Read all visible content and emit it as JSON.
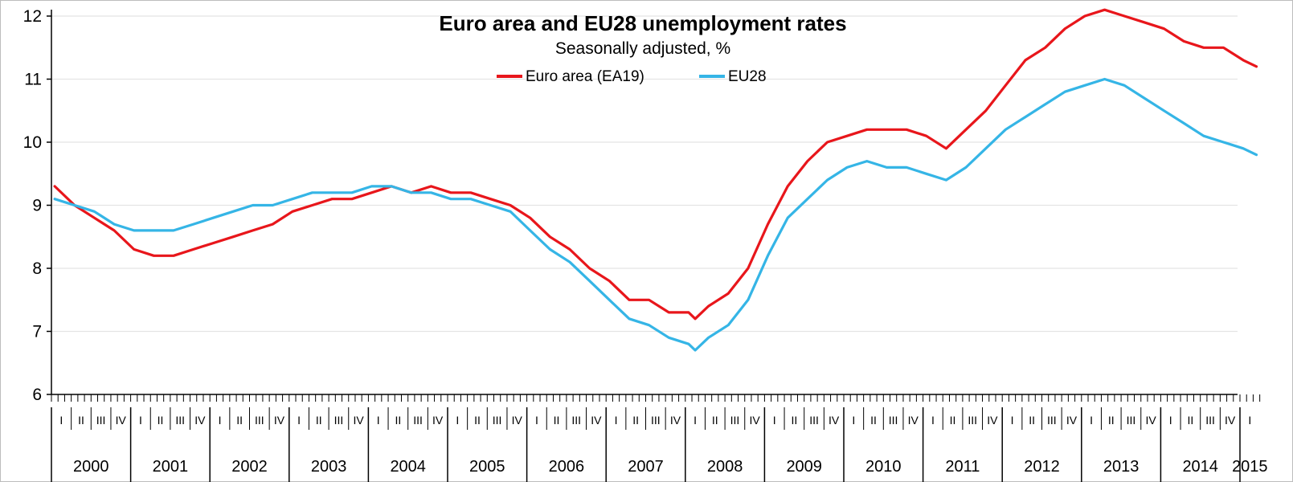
{
  "chart_data": {
    "type": "line",
    "title": "Euro area and EU28 unemployment rates",
    "subtitle": "Seasonally adjusted, %",
    "xlabel": "",
    "ylabel": "",
    "ylim": [
      6,
      12
    ],
    "yticks": [
      "6",
      "7",
      "8",
      "9",
      "10",
      "11",
      "12"
    ],
    "grid": "horizontal",
    "legend_position": "top-center",
    "x_start": "2000-01",
    "x_end": "2015-03",
    "year_labels": [
      "2000",
      "2001",
      "2002",
      "2003",
      "2004",
      "2005",
      "2006",
      "2007",
      "2008",
      "2009",
      "2010",
      "2011",
      "2012",
      "2013",
      "2014",
      "2015"
    ],
    "quarter_labels": [
      "I",
      "II",
      "III",
      "IV"
    ],
    "series": [
      {
        "name": "Euro area (EA19)",
        "color": "#e8161b",
        "points": [
          [
            "2000-01",
            9.3
          ],
          [
            "2000-04",
            9.0
          ],
          [
            "2000-07",
            8.8
          ],
          [
            "2000-10",
            8.6
          ],
          [
            "2001-01",
            8.3
          ],
          [
            "2001-04",
            8.2
          ],
          [
            "2001-07",
            8.2
          ],
          [
            "2001-10",
            8.3
          ],
          [
            "2002-01",
            8.4
          ],
          [
            "2002-04",
            8.5
          ],
          [
            "2002-07",
            8.6
          ],
          [
            "2002-10",
            8.7
          ],
          [
            "2003-01",
            8.9
          ],
          [
            "2003-04",
            9.0
          ],
          [
            "2003-07",
            9.1
          ],
          [
            "2003-10",
            9.1
          ],
          [
            "2004-01",
            9.2
          ],
          [
            "2004-04",
            9.3
          ],
          [
            "2004-07",
            9.2
          ],
          [
            "2004-10",
            9.3
          ],
          [
            "2005-01",
            9.2
          ],
          [
            "2005-04",
            9.2
          ],
          [
            "2005-07",
            9.1
          ],
          [
            "2005-10",
            9.0
          ],
          [
            "2006-01",
            8.8
          ],
          [
            "2006-04",
            8.5
          ],
          [
            "2006-07",
            8.3
          ],
          [
            "2006-10",
            8.0
          ],
          [
            "2007-01",
            7.8
          ],
          [
            "2007-04",
            7.5
          ],
          [
            "2007-07",
            7.5
          ],
          [
            "2007-10",
            7.3
          ],
          [
            "2008-01",
            7.3
          ],
          [
            "2008-02",
            7.2
          ],
          [
            "2008-04",
            7.4
          ],
          [
            "2008-07",
            7.6
          ],
          [
            "2008-10",
            8.0
          ],
          [
            "2009-01",
            8.7
          ],
          [
            "2009-04",
            9.3
          ],
          [
            "2009-07",
            9.7
          ],
          [
            "2009-10",
            10.0
          ],
          [
            "2010-01",
            10.1
          ],
          [
            "2010-04",
            10.2
          ],
          [
            "2010-07",
            10.2
          ],
          [
            "2010-10",
            10.2
          ],
          [
            "2011-01",
            10.1
          ],
          [
            "2011-04",
            9.9
          ],
          [
            "2011-07",
            10.2
          ],
          [
            "2011-10",
            10.5
          ],
          [
            "2012-01",
            10.9
          ],
          [
            "2012-04",
            11.3
          ],
          [
            "2012-07",
            11.5
          ],
          [
            "2012-10",
            11.8
          ],
          [
            "2013-01",
            12.0
          ],
          [
            "2013-04",
            12.1
          ],
          [
            "2013-07",
            12.0
          ],
          [
            "2013-10",
            11.9
          ],
          [
            "2014-01",
            11.8
          ],
          [
            "2014-04",
            11.6
          ],
          [
            "2014-07",
            11.5
          ],
          [
            "2014-10",
            11.5
          ],
          [
            "2015-01",
            11.3
          ],
          [
            "2015-03",
            11.2
          ]
        ]
      },
      {
        "name": "EU28",
        "color": "#35b5e6",
        "points": [
          [
            "2000-01",
            9.1
          ],
          [
            "2000-04",
            9.0
          ],
          [
            "2000-07",
            8.9
          ],
          [
            "2000-10",
            8.7
          ],
          [
            "2001-01",
            8.6
          ],
          [
            "2001-04",
            8.6
          ],
          [
            "2001-07",
            8.6
          ],
          [
            "2001-10",
            8.7
          ],
          [
            "2002-01",
            8.8
          ],
          [
            "2002-04",
            8.9
          ],
          [
            "2002-07",
            9.0
          ],
          [
            "2002-10",
            9.0
          ],
          [
            "2003-01",
            9.1
          ],
          [
            "2003-04",
            9.2
          ],
          [
            "2003-07",
            9.2
          ],
          [
            "2003-10",
            9.2
          ],
          [
            "2004-01",
            9.3
          ],
          [
            "2004-04",
            9.3
          ],
          [
            "2004-07",
            9.2
          ],
          [
            "2004-10",
            9.2
          ],
          [
            "2005-01",
            9.1
          ],
          [
            "2005-04",
            9.1
          ],
          [
            "2005-07",
            9.0
          ],
          [
            "2005-10",
            8.9
          ],
          [
            "2006-01",
            8.6
          ],
          [
            "2006-04",
            8.3
          ],
          [
            "2006-07",
            8.1
          ],
          [
            "2006-10",
            7.8
          ],
          [
            "2007-01",
            7.5
          ],
          [
            "2007-04",
            7.2
          ],
          [
            "2007-07",
            7.1
          ],
          [
            "2007-10",
            6.9
          ],
          [
            "2008-01",
            6.8
          ],
          [
            "2008-02",
            6.7
          ],
          [
            "2008-04",
            6.9
          ],
          [
            "2008-07",
            7.1
          ],
          [
            "2008-10",
            7.5
          ],
          [
            "2009-01",
            8.2
          ],
          [
            "2009-04",
            8.8
          ],
          [
            "2009-07",
            9.1
          ],
          [
            "2009-10",
            9.4
          ],
          [
            "2010-01",
            9.6
          ],
          [
            "2010-04",
            9.7
          ],
          [
            "2010-07",
            9.6
          ],
          [
            "2010-10",
            9.6
          ],
          [
            "2011-01",
            9.5
          ],
          [
            "2011-04",
            9.4
          ],
          [
            "2011-07",
            9.6
          ],
          [
            "2011-10",
            9.9
          ],
          [
            "2012-01",
            10.2
          ],
          [
            "2012-04",
            10.4
          ],
          [
            "2012-07",
            10.6
          ],
          [
            "2012-10",
            10.8
          ],
          [
            "2013-01",
            10.9
          ],
          [
            "2013-04",
            11.0
          ],
          [
            "2013-07",
            10.9
          ],
          [
            "2013-10",
            10.7
          ],
          [
            "2014-01",
            10.5
          ],
          [
            "2014-04",
            10.3
          ],
          [
            "2014-07",
            10.1
          ],
          [
            "2014-10",
            10.0
          ],
          [
            "2015-01",
            9.9
          ],
          [
            "2015-03",
            9.8
          ]
        ]
      }
    ]
  }
}
